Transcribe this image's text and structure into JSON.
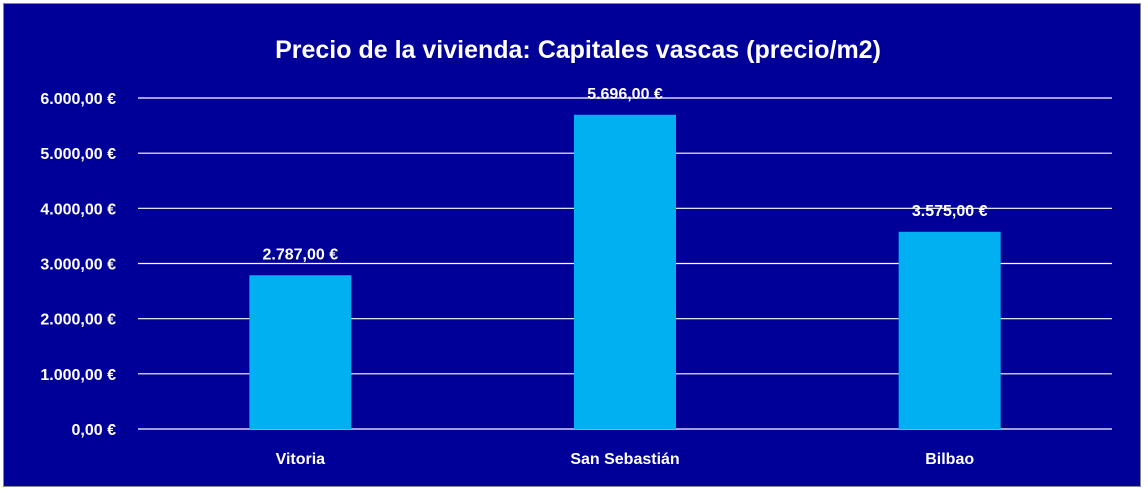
{
  "chart_data": {
    "type": "bar",
    "title": "Precio de la vivienda: Capitales vascas (precio/m2)",
    "xlabel": "",
    "ylabel": "",
    "categories": [
      "Vitoria",
      "San Sebastián",
      "Bilbao"
    ],
    "values": [
      2787,
      5696,
      3575
    ],
    "data_labels": [
      "2.787,00 €",
      "5.696,00 €",
      "3.575,00 €"
    ],
    "ylim": [
      0,
      6000
    ],
    "yticks": [
      0,
      1000,
      2000,
      3000,
      4000,
      5000,
      6000
    ],
    "ytick_labels": [
      "0,00 €",
      "1.000,00 €",
      "2.000,00 €",
      "3.000,00 €",
      "4.000,00 €",
      "5.000,00 €",
      "6.000,00 €"
    ],
    "grid": true,
    "legend": "none",
    "colors": {
      "background": "#000099",
      "bar": "#00B0F0",
      "text": "#FFFFFF",
      "gridline": "#FFFFFF",
      "border": "#8A8A8A"
    }
  }
}
